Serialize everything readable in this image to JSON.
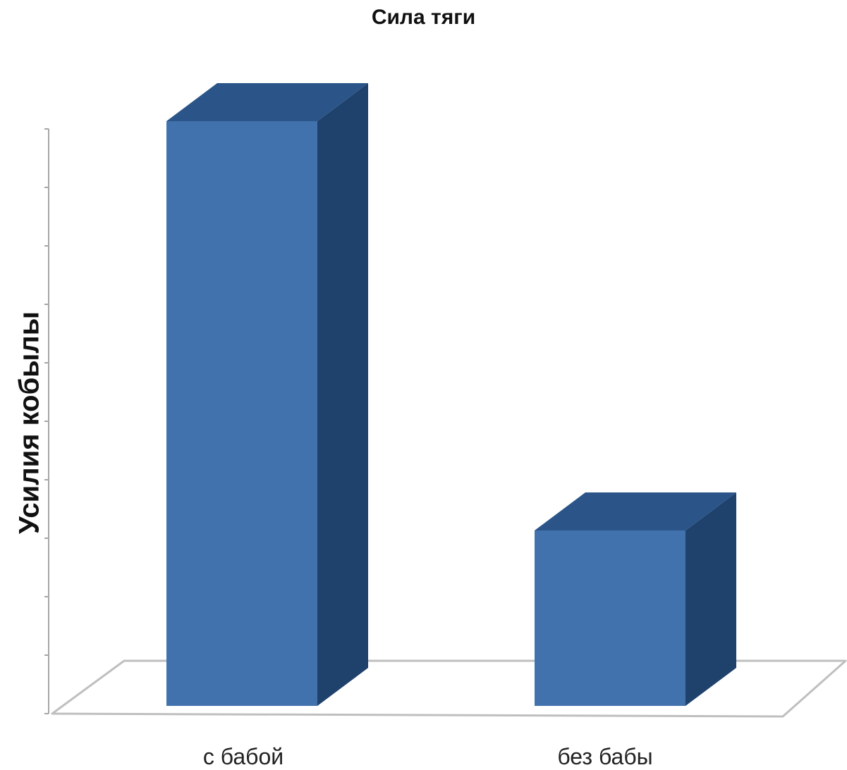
{
  "chart_data": {
    "type": "bar",
    "title": "Сила тяги",
    "xlabel": "",
    "ylabel": "Усилия кобылы",
    "categories": [
      "с бабой",
      "без бабы"
    ],
    "values": [
      100,
      30
    ],
    "ylim": [
      0,
      100
    ],
    "y_tick_count": 10,
    "tick_labels_shown": false,
    "grid": false,
    "legend": "none",
    "colors": {
      "bar_front": "#4272AD",
      "bar_side": "#1E426C",
      "bar_top": "#2B5588",
      "floor_edge": "#BFBFBF",
      "axis": "#A6A6A6"
    }
  }
}
